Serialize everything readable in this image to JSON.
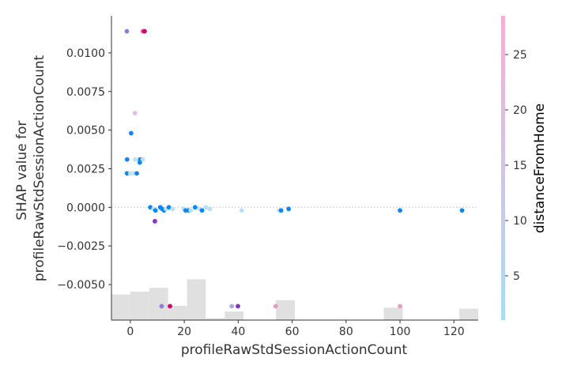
{
  "chart_data": {
    "type": "scatter",
    "xlabel": "profileRawStdSessionActionCount",
    "ylabel_lines": [
      "SHAP value for",
      "profileRawStdSessionActionCount"
    ],
    "xlim": [
      -7,
      129
    ],
    "ylim": [
      -0.0073,
      0.0124
    ],
    "x_ticks": [
      0,
      20,
      40,
      60,
      80,
      100,
      120
    ],
    "y_ticks": [
      0.01,
      0.0075,
      0.005,
      0.0025,
      0.0,
      -0.0025,
      -0.005
    ],
    "x_tick_labels": [
      "0",
      "20",
      "40",
      "60",
      "80",
      "100",
      "120"
    ],
    "y_tick_labels": [
      "0.0100",
      "0.0075",
      "0.0050",
      "0.0025",
      "0.0000",
      "−0.0025",
      "−0.0050"
    ],
    "zero_line": true,
    "colorbar": {
      "label": "distanceFromHome",
      "range": [
        1,
        28.5
      ],
      "ticks": [
        5,
        10,
        15,
        20,
        25
      ],
      "tick_labels": [
        "5",
        "10",
        "15",
        "20",
        "25"
      ],
      "color_low": "#a9dcf7",
      "color_high": "#f7aed4"
    },
    "histogram": {
      "fill": "#e0e0e0",
      "bins": [
        {
          "x0": -7,
          "x1": 0,
          "h": 0.27
        },
        {
          "x0": 0,
          "x1": 7,
          "h": 0.3
        },
        {
          "x0": 7,
          "x1": 14,
          "h": 0.34
        },
        {
          "x0": 14,
          "x1": 21,
          "h": 0.15
        },
        {
          "x0": 21,
          "x1": 28,
          "h": 0.43
        },
        {
          "x0": 28,
          "x1": 35,
          "h": 0.02
        },
        {
          "x0": 35,
          "x1": 42,
          "h": 0.09
        },
        {
          "x0": 42,
          "x1": 54,
          "h": 0.0
        },
        {
          "x0": 54,
          "x1": 61,
          "h": 0.21
        },
        {
          "x0": 61,
          "x1": 94,
          "h": 0.0
        },
        {
          "x0": 94,
          "x1": 101,
          "h": 0.13
        },
        {
          "x0": 101,
          "x1": 122,
          "h": 0.0
        },
        {
          "x0": 122,
          "x1": 129,
          "h": 0.12
        }
      ]
    },
    "points": [
      {
        "x": -1.3,
        "y": 0.0114,
        "c": "#8a82d8"
      },
      {
        "x": 4.7,
        "y": 0.0114,
        "c": "#e0559c"
      },
      {
        "x": 5.3,
        "y": 0.0114,
        "c": "#d8006a"
      },
      {
        "x": 1.7,
        "y": 0.0061,
        "c": "#e2b8e6"
      },
      {
        "x": 0.3,
        "y": 0.0048,
        "c": "#0f86ee"
      },
      {
        "x": -1.2,
        "y": 0.0031,
        "c": "#0f86ee"
      },
      {
        "x": 1.8,
        "y": 0.0031,
        "c": "#b9e0f7"
      },
      {
        "x": 3.0,
        "y": 0.0031,
        "c": "#c4e4f7"
      },
      {
        "x": 3.7,
        "y": 0.0031,
        "c": "#0f86ee"
      },
      {
        "x": 4.6,
        "y": 0.0031,
        "c": "#b9e0f7"
      },
      {
        "x": 3.5,
        "y": 0.0029,
        "c": "#0f86ee"
      },
      {
        "x": -1.2,
        "y": 0.0022,
        "c": "#0f86ee"
      },
      {
        "x": 0.0,
        "y": 0.0022,
        "c": "#b9e0f7"
      },
      {
        "x": 1.0,
        "y": 0.0022,
        "c": "#c4e4f7"
      },
      {
        "x": 2.4,
        "y": 0.0022,
        "c": "#0f86ee"
      },
      {
        "x": 7.4,
        "y": 0.0,
        "c": "#0f86ee"
      },
      {
        "x": 8.6,
        "y": -0.0001,
        "c": "#b9e0f7"
      },
      {
        "x": 9.3,
        "y": -0.0002,
        "c": "#0f86ee"
      },
      {
        "x": 11.1,
        "y": 0.0,
        "c": "#0f86ee"
      },
      {
        "x": 11.8,
        "y": -0.0001,
        "c": "#0f86ee"
      },
      {
        "x": 12.5,
        "y": -0.0002,
        "c": "#0f86ee"
      },
      {
        "x": 13.2,
        "y": -0.0001,
        "c": "#b9e0f7"
      },
      {
        "x": 14.3,
        "y": 0.0,
        "c": "#0f86ee"
      },
      {
        "x": 15.6,
        "y": -0.0001,
        "c": "#b9e0f7"
      },
      {
        "x": 19.8,
        "y": -0.0001,
        "c": "#b9e0f7"
      },
      {
        "x": 20.5,
        "y": -0.0002,
        "c": "#0f86ee"
      },
      {
        "x": 21.6,
        "y": -0.0002,
        "c": "#0f86ee"
      },
      {
        "x": 22.4,
        "y": -0.0002,
        "c": "#b9e0f7"
      },
      {
        "x": 24.0,
        "y": 0.0,
        "c": "#0f86ee"
      },
      {
        "x": 25.7,
        "y": -0.0001,
        "c": "#b9e0f7"
      },
      {
        "x": 26.6,
        "y": -0.0002,
        "c": "#0f86ee"
      },
      {
        "x": 28.0,
        "y": 0.0,
        "c": "#b9e0f7"
      },
      {
        "x": 29.5,
        "y": -0.0001,
        "c": "#b9e0f7"
      },
      {
        "x": 41.3,
        "y": -0.0002,
        "c": "#b9e0f7"
      },
      {
        "x": 55.2,
        "y": -0.0002,
        "c": "#b9e0f7"
      },
      {
        "x": 55.9,
        "y": -0.0002,
        "c": "#0f86ee"
      },
      {
        "x": 58.7,
        "y": -0.0001,
        "c": "#0f86ee"
      },
      {
        "x": 100.0,
        "y": -0.0002,
        "c": "#0f86ee"
      },
      {
        "x": 123.0,
        "y": -0.0002,
        "c": "#0f86ee"
      },
      {
        "x": 9.1,
        "y": -0.0009,
        "c": "#8a2fbf"
      },
      {
        "x": 11.6,
        "y": -0.0064,
        "c": "#8a82d8"
      },
      {
        "x": 14.7,
        "y": -0.0064,
        "c": "#d8006a"
      },
      {
        "x": 37.6,
        "y": -0.0064,
        "c": "#b0a4ee"
      },
      {
        "x": 39.9,
        "y": -0.0064,
        "c": "#8a2fbf"
      },
      {
        "x": 53.9,
        "y": -0.0064,
        "c": "#e89ac8"
      },
      {
        "x": 100.0,
        "y": -0.0064,
        "c": "#e89ac8"
      }
    ]
  }
}
